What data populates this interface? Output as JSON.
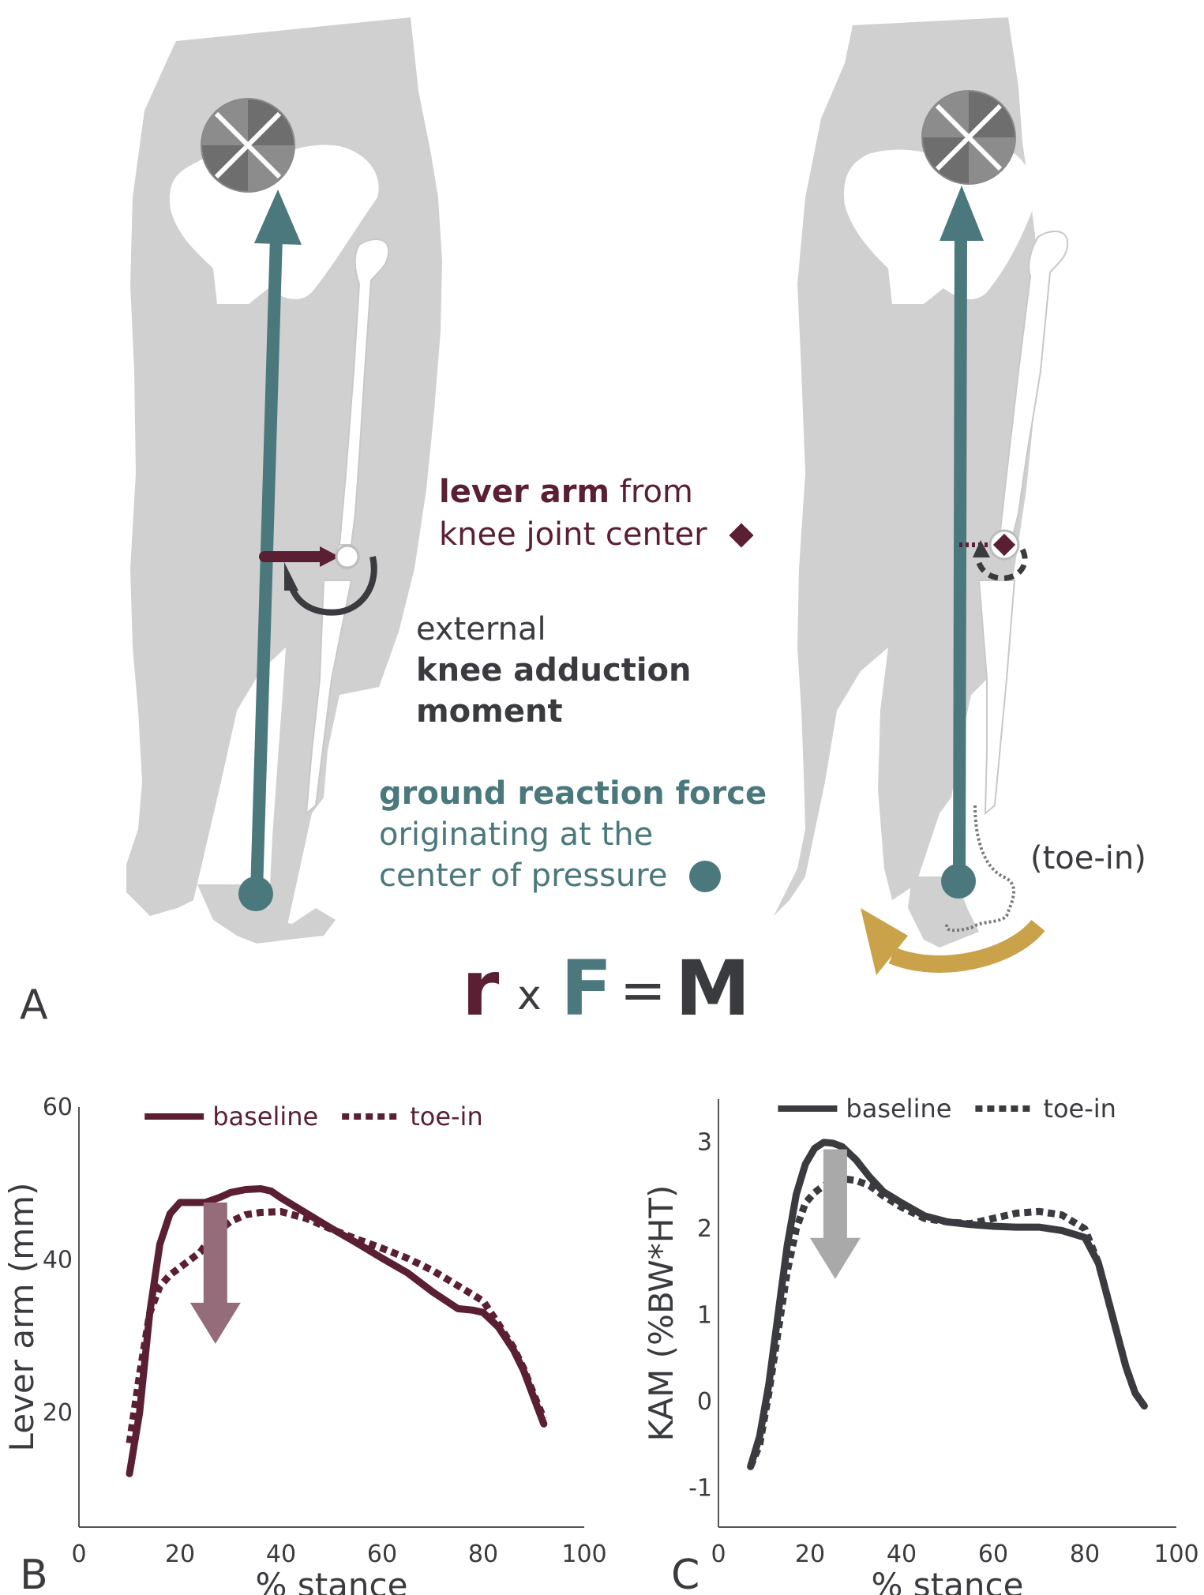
{
  "colors": {
    "lever": "#5a1f33",
    "force": "#4a787c",
    "moment": "#3a3b3f",
    "toe_in_arrow": "#c9a24a",
    "body": "#d0d0d0",
    "panel_b_arrow": "#956c79",
    "panel_c_arrow": "#a9a9a9"
  },
  "panel_a": {
    "label": "A",
    "lever_bold": "lever arm",
    "lever_rest": " from",
    "lever_line2": "knee joint center",
    "moment_line1": "external",
    "moment_line2": "knee adduction",
    "moment_line3": "moment",
    "force_bold": "ground reaction force",
    "force_line2": "originating at the",
    "force_line3": "center of pressure",
    "toe_in": "(toe-in)",
    "eq_r": "r",
    "eq_x": "x",
    "eq_f": "F",
    "eq_eq": "=",
    "eq_m": "M",
    "icons": [
      "hip-joint-center-icon",
      "knee-joint-diamond-icon",
      "center-of-pressure-dot-icon",
      "rotation-arrow-icon"
    ]
  },
  "chart_data": [
    {
      "panel": "B",
      "type": "line",
      "xlabel": "% stance",
      "ylabel": "Lever arm (mm)",
      "xlim": [
        0,
        100
      ],
      "ylim": [
        5,
        60
      ],
      "xticks": [
        0,
        20,
        40,
        60,
        80,
        100
      ],
      "yticks": [
        20,
        40,
        60
      ],
      "legend": "top",
      "series": [
        {
          "name": "baseline",
          "style": "solid",
          "x": [
            10,
            12,
            14,
            16,
            18,
            20,
            22,
            25,
            28,
            30,
            33,
            36,
            38,
            40,
            45,
            50,
            55,
            60,
            65,
            70,
            75,
            78,
            80,
            83,
            86,
            88,
            90,
            92
          ],
          "y": [
            12,
            20,
            33,
            42,
            46,
            47.5,
            47.5,
            47.5,
            48.2,
            48.8,
            49.2,
            49.3,
            49,
            48.1,
            46.1,
            44.1,
            42.2,
            40.2,
            38.3,
            35.8,
            33.6,
            33.4,
            33.1,
            31.2,
            28.2,
            25.5,
            22,
            18.5
          ]
        },
        {
          "name": "toe-in",
          "style": "dashed",
          "x": [
            10,
            12,
            14,
            16,
            18,
            20,
            22,
            24,
            26,
            28,
            30,
            33,
            36,
            40,
            45,
            50,
            55,
            60,
            65,
            70,
            75,
            80,
            83,
            86,
            88,
            90,
            92
          ],
          "y": [
            16,
            25,
            33,
            36.5,
            38,
            39,
            40,
            41,
            42.8,
            44,
            45,
            45.9,
            46.2,
            46.3,
            45.4,
            44,
            42.7,
            41.5,
            40.2,
            38.6,
            36.6,
            34.6,
            31.6,
            28.5,
            25.8,
            22.4,
            19.2
          ]
        }
      ]
    },
    {
      "panel": "C",
      "type": "line",
      "xlabel": "% stance",
      "ylabel": "KAM (%BW*HT)",
      "xlim": [
        0,
        100
      ],
      "ylim": [
        -1.45,
        3.5
      ],
      "xticks": [
        0,
        20,
        40,
        60,
        80,
        100
      ],
      "yticks": [
        -1,
        0,
        1,
        2,
        3
      ],
      "legend": "top",
      "series": [
        {
          "name": "baseline",
          "style": "solid",
          "x": [
            7,
            9,
            11,
            13,
            15,
            17,
            19,
            21,
            23,
            25,
            27,
            30,
            33,
            36,
            40,
            45,
            50,
            55,
            60,
            65,
            70,
            75,
            80,
            83,
            85,
            87,
            89,
            91,
            93
          ],
          "y": [
            -0.75,
            -0.4,
            0.2,
            1.0,
            1.8,
            2.4,
            2.75,
            2.93,
            3.0,
            2.99,
            2.95,
            2.8,
            2.6,
            2.43,
            2.3,
            2.15,
            2.08,
            2.05,
            2.03,
            2.02,
            2.02,
            1.98,
            1.9,
            1.6,
            1.2,
            0.8,
            0.4,
            0.1,
            -0.05
          ]
        },
        {
          "name": "toe-in",
          "style": "dashed",
          "x": [
            7,
            9,
            11,
            13,
            15,
            17,
            19,
            21,
            23,
            25,
            27,
            30,
            33,
            36,
            40,
            45,
            50,
            55,
            60,
            65,
            70,
            75,
            80,
            83,
            85,
            87,
            89,
            91,
            93
          ],
          "y": [
            -0.75,
            -0.5,
            0.1,
            0.8,
            1.5,
            2.0,
            2.3,
            2.42,
            2.5,
            2.55,
            2.58,
            2.56,
            2.5,
            2.38,
            2.25,
            2.12,
            2.08,
            2.06,
            2.12,
            2.18,
            2.2,
            2.16,
            2.0,
            1.6,
            1.2,
            0.8,
            0.4,
            0.1,
            -0.05
          ]
        }
      ]
    }
  ],
  "panel_b": {
    "label": "B"
  },
  "panel_c": {
    "label": "C"
  }
}
